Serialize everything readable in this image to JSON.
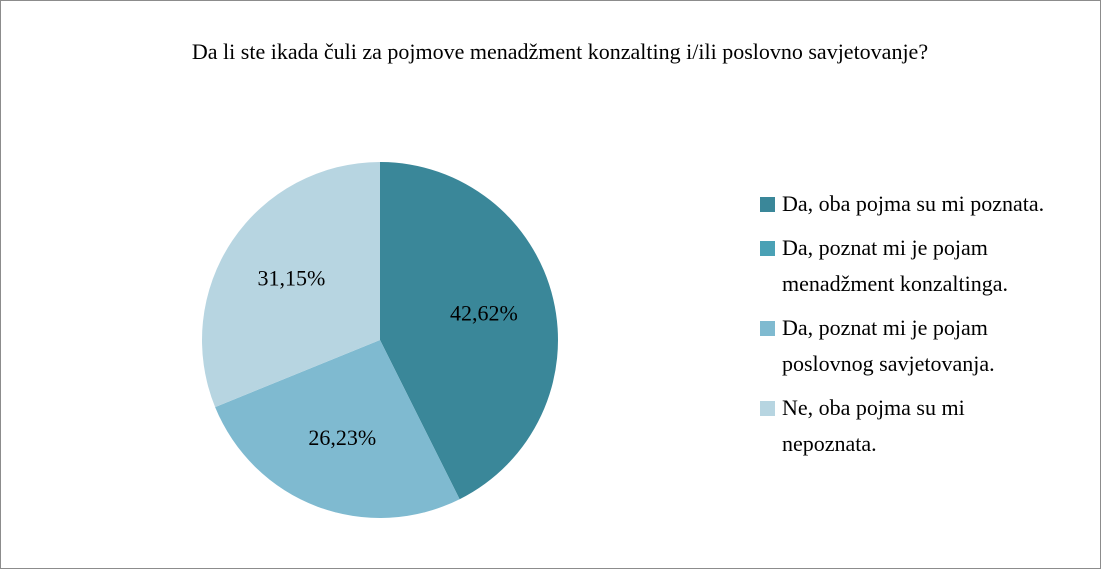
{
  "chart_data": {
    "type": "pie",
    "title": "Da li ste ikada čuli za pojmove menadžment konzalting i/ili poslovno savjetovanje?",
    "categories": [
      "Da, oba pojma su mi poznata.",
      "Da, poznat mi je pojam menadžment konzaltinga.",
      "Da, poznat mi je pojam poslovnog savjetovanja.",
      "Ne, oba pojma su mi nepoznata."
    ],
    "values": [
      42.62,
      0,
      26.23,
      31.15
    ],
    "value_labels": [
      "42,62%",
      null,
      "26,23%",
      "31,15%"
    ],
    "colors": [
      "#3a8799",
      "#4aa1b5",
      "#7fbad0",
      "#b7d5e1"
    ],
    "legend": "right"
  }
}
